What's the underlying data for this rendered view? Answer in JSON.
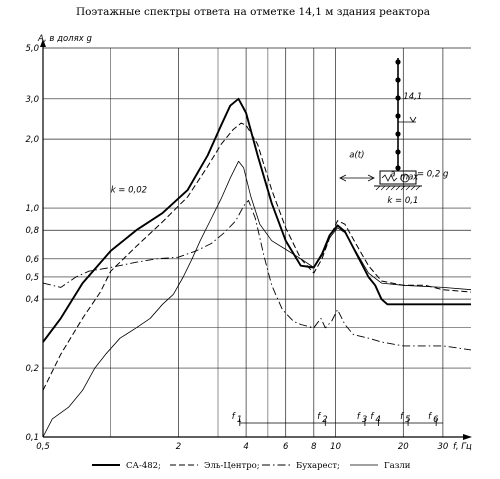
{
  "chart_data": {
    "type": "line",
    "title": "Поэтажные спектры ответа на отметке 14,1 м здания реактора",
    "ylabel": "A, в долях g",
    "xlabel": "f, Гц",
    "x_scale": "log",
    "y_scale": "log",
    "xlim": [
      0.5,
      40
    ],
    "ylim": [
      0.1,
      5.0
    ],
    "x_ticks": [
      0.5,
      2,
      4,
      6,
      8,
      10,
      20,
      30
    ],
    "x_tick_labels": [
      "0,5",
      "2",
      "4",
      "6",
      "8",
      "10",
      "20",
      "30"
    ],
    "y_ticks": [
      0.1,
      0.2,
      0.4,
      0.5,
      0.6,
      0.8,
      1.0,
      2.0,
      3.0,
      5.0
    ],
    "y_tick_labels": [
      "0,1",
      "0,2",
      "0,4",
      "0,5",
      "0,6",
      "0,8",
      "1,0",
      "2,0",
      "3,0",
      "5,0"
    ],
    "grid": true,
    "series": [
      {
        "name": "СА-482",
        "style": "solid-bold",
        "points": [
          [
            0.5,
            0.26
          ],
          [
            0.6,
            0.33
          ],
          [
            0.75,
            0.47
          ],
          [
            1.0,
            0.65
          ],
          [
            1.3,
            0.8
          ],
          [
            1.7,
            0.95
          ],
          [
            2.2,
            1.2
          ],
          [
            2.7,
            1.7
          ],
          [
            3.1,
            2.3
          ],
          [
            3.4,
            2.8
          ],
          [
            3.7,
            3.0
          ],
          [
            4.0,
            2.6
          ],
          [
            4.5,
            1.7
          ],
          [
            5.2,
            1.05
          ],
          [
            6.0,
            0.72
          ],
          [
            7.0,
            0.56
          ],
          [
            8.0,
            0.55
          ],
          [
            8.7,
            0.63
          ],
          [
            9.4,
            0.76
          ],
          [
            10.2,
            0.84
          ],
          [
            11.0,
            0.79
          ],
          [
            12.5,
            0.62
          ],
          [
            14.0,
            0.5
          ],
          [
            15.0,
            0.46
          ],
          [
            16.0,
            0.4
          ],
          [
            17.0,
            0.38
          ],
          [
            20.0,
            0.38
          ],
          [
            30.0,
            0.38
          ],
          [
            40.0,
            0.38
          ]
        ]
      },
      {
        "name": "Эль-Центро",
        "style": "dashed",
        "points": [
          [
            0.5,
            0.16
          ],
          [
            0.6,
            0.23
          ],
          [
            0.75,
            0.33
          ],
          [
            0.9,
            0.43
          ],
          [
            1.0,
            0.53
          ],
          [
            1.3,
            0.68
          ],
          [
            1.7,
            0.87
          ],
          [
            2.2,
            1.12
          ],
          [
            2.7,
            1.52
          ],
          [
            3.1,
            1.9
          ],
          [
            3.5,
            2.2
          ],
          [
            3.8,
            2.35
          ],
          [
            4.0,
            2.3
          ],
          [
            4.5,
            1.9
          ],
          [
            5.2,
            1.2
          ],
          [
            6.0,
            0.82
          ],
          [
            7.0,
            0.6
          ],
          [
            8.0,
            0.52
          ],
          [
            8.7,
            0.6
          ],
          [
            9.4,
            0.74
          ],
          [
            10.2,
            0.88
          ],
          [
            11.0,
            0.85
          ],
          [
            12.5,
            0.68
          ],
          [
            14.0,
            0.56
          ],
          [
            16.0,
            0.48
          ],
          [
            20.0,
            0.46
          ],
          [
            25.0,
            0.46
          ],
          [
            30.0,
            0.44
          ],
          [
            40.0,
            0.43
          ]
        ]
      },
      {
        "name": "Бухарест",
        "style": "dash-dot",
        "points": [
          [
            0.5,
            0.47
          ],
          [
            0.6,
            0.45
          ],
          [
            0.7,
            0.5
          ],
          [
            0.8,
            0.53
          ],
          [
            1.0,
            0.55
          ],
          [
            1.3,
            0.58
          ],
          [
            1.6,
            0.6
          ],
          [
            2.0,
            0.61
          ],
          [
            2.4,
            0.65
          ],
          [
            2.8,
            0.7
          ],
          [
            3.2,
            0.78
          ],
          [
            3.6,
            0.88
          ],
          [
            3.9,
            1.02
          ],
          [
            4.1,
            1.08
          ],
          [
            4.4,
            0.9
          ],
          [
            4.8,
            0.62
          ],
          [
            5.2,
            0.46
          ],
          [
            5.8,
            0.36
          ],
          [
            6.5,
            0.32
          ],
          [
            7.0,
            0.31
          ],
          [
            8.0,
            0.3
          ],
          [
            8.6,
            0.33
          ],
          [
            9.0,
            0.3
          ],
          [
            9.6,
            0.32
          ],
          [
            10.2,
            0.36
          ],
          [
            11.0,
            0.31
          ],
          [
            12.0,
            0.28
          ],
          [
            14.0,
            0.27
          ],
          [
            16.0,
            0.26
          ],
          [
            20.0,
            0.25
          ],
          [
            30.0,
            0.25
          ],
          [
            40.0,
            0.24
          ]
        ]
      },
      {
        "name": "Газли",
        "style": "solid-thin",
        "points": [
          [
            0.5,
            0.1
          ],
          [
            0.55,
            0.12
          ],
          [
            0.65,
            0.135
          ],
          [
            0.75,
            0.16
          ],
          [
            0.85,
            0.2
          ],
          [
            0.95,
            0.23
          ],
          [
            1.1,
            0.27
          ],
          [
            1.3,
            0.3
          ],
          [
            1.5,
            0.33
          ],
          [
            1.7,
            0.38
          ],
          [
            1.9,
            0.42
          ],
          [
            2.1,
            0.5
          ],
          [
            2.3,
            0.6
          ],
          [
            2.5,
            0.72
          ],
          [
            2.8,
            0.9
          ],
          [
            3.1,
            1.1
          ],
          [
            3.4,
            1.35
          ],
          [
            3.7,
            1.6
          ],
          [
            3.9,
            1.5
          ],
          [
            4.2,
            1.12
          ],
          [
            4.6,
            0.85
          ],
          [
            5.2,
            0.72
          ],
          [
            6.0,
            0.66
          ],
          [
            7.0,
            0.6
          ],
          [
            8.0,
            0.55
          ],
          [
            8.7,
            0.62
          ],
          [
            9.4,
            0.74
          ],
          [
            10.2,
            0.82
          ],
          [
            11.0,
            0.78
          ],
          [
            12.5,
            0.63
          ],
          [
            14.0,
            0.52
          ],
          [
            16.0,
            0.47
          ],
          [
            20.0,
            0.46
          ],
          [
            30.0,
            0.45
          ],
          [
            40.0,
            0.44
          ]
        ]
      }
    ],
    "annotations": [
      {
        "text": "k = 0,02",
        "x": 1.0,
        "y": 1.17
      },
      {
        "text": "k = 0,1",
        "x": 17.0,
        "y": 1.05
      },
      {
        "text": "a(t)",
        "x": 11.5,
        "y": 1.66
      },
      {
        "text": "a",
        "x": 17.5,
        "y": 1.37
      },
      {
        "text": "max",
        "x": 19.3,
        "y": 1.33
      },
      {
        "text": "= 0,2 g",
        "x": 23.0,
        "y": 1.37
      },
      {
        "text": "14,1",
        "x": 20.0,
        "y": 3.0
      }
    ],
    "frequency_markers": [
      {
        "label": "f",
        "sub": "1",
        "x": 3.75
      },
      {
        "label": "f",
        "sub": "2",
        "x": 9.0
      },
      {
        "label": "f",
        "sub": "3",
        "x": 13.5
      },
      {
        "label": "f",
        "sub": "4",
        "x": 15.5
      },
      {
        "label": "f",
        "sub": "5",
        "x": 21.0
      },
      {
        "label": "f",
        "sub": "6",
        "x": 28.0
      }
    ],
    "legend_placement": "bottom"
  },
  "legend_labels": [
    "СА-482;",
    "Эль-Центро;",
    "Бухарест;",
    "Газли"
  ]
}
